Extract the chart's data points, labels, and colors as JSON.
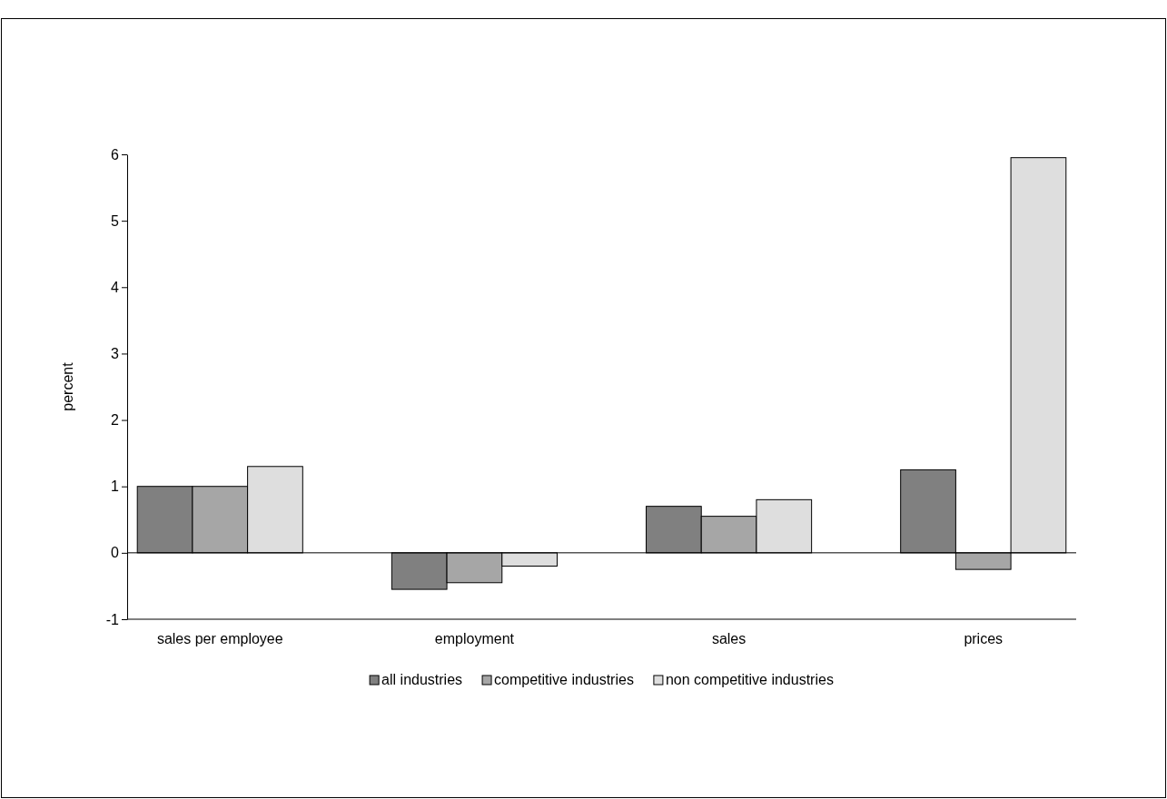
{
  "chart_data": {
    "type": "bar",
    "ylabel": "percent",
    "categories": [
      "sales per employee",
      "employment",
      "sales",
      "prices"
    ],
    "series": [
      {
        "name": "all industries",
        "color": "#808080",
        "values": [
          1.0,
          -0.55,
          0.7,
          1.25
        ]
      },
      {
        "name": "competitive industries",
        "color": "#a6a6a6",
        "values": [
          1.0,
          -0.45,
          0.55,
          -0.25
        ]
      },
      {
        "name": "non competitive industries",
        "color": "#dedede",
        "values": [
          1.3,
          -0.2,
          0.8,
          5.95
        ]
      }
    ],
    "ylim": [
      -1,
      6
    ],
    "yticks": [
      -1,
      0,
      1,
      2,
      3,
      4,
      5,
      6
    ],
    "ref_lines": [
      {
        "axis": "y",
        "value": 0
      }
    ],
    "legend": "bottom"
  }
}
